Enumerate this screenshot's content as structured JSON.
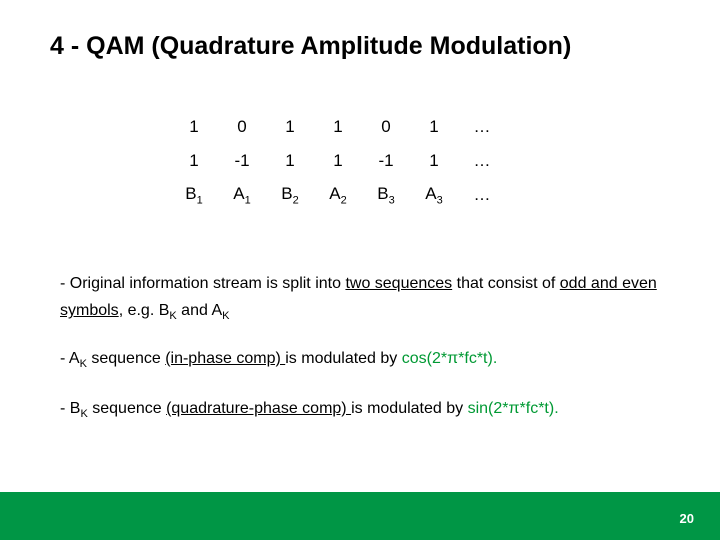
{
  "title": "4 - QAM (Quadrature Amplitude Modulation)",
  "table": {
    "row1": [
      "1",
      "0",
      "1",
      "1",
      "0",
      "1",
      "…"
    ],
    "row2": [
      "1",
      "-1",
      "1",
      "1",
      "-1",
      "1",
      "…"
    ],
    "row3_labels": [
      "B",
      "A",
      "B",
      "A",
      "B",
      "A",
      ""
    ],
    "row3_subs": [
      "1",
      "1",
      "2",
      "2",
      "3",
      "3",
      ""
    ],
    "row3_tail": "…"
  },
  "para1_a": "- Original information stream is split into ",
  "para1_b": "two sequences",
  "para1_c": " that consist of ",
  "para1_d": "odd and even symbols",
  "para1_e": ", e.g. B",
  "para1_f": " and A",
  "para2_a": "- A",
  "para2_b": " sequence ",
  "para2_c": "(in-phase comp) ",
  "para2_d": "is modulated by ",
  "para2_e": "cos(2*π*fc*t).",
  "para3_a": "- B",
  "para3_b": " sequence ",
  "para3_c": "(quadrature-phase comp) ",
  "para3_d": "is modulated by ",
  "para3_e": "sin(2*π*fc*t).",
  "k": "K",
  "page": "20",
  "colors": {
    "accent_green": "#009933",
    "footer_green": "#009645",
    "text": "#000000",
    "bg": "#ffffff"
  }
}
